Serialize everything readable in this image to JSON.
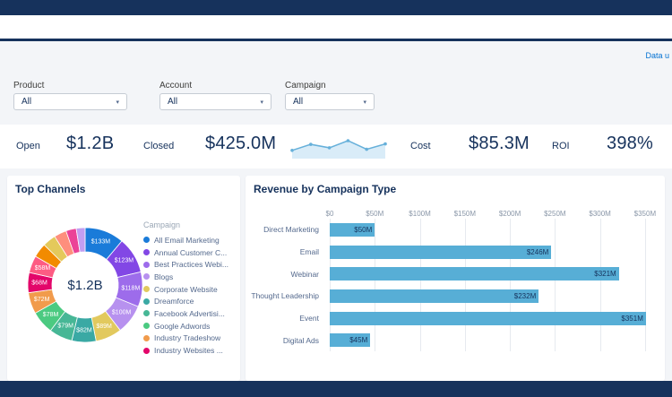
{
  "page": {
    "data_updated_text": "Data u"
  },
  "filters": [
    {
      "label": "Product",
      "value": "All"
    },
    {
      "label": "Account",
      "value": "All"
    },
    {
      "label": "Campaign",
      "value": "All"
    }
  ],
  "kpis": [
    {
      "label": "Open",
      "value": "$1.2B"
    },
    {
      "label": "Closed",
      "value": "$425.0M"
    },
    {
      "label": "Cost",
      "value": "$85.3M"
    },
    {
      "label": "ROI",
      "value": "398%"
    }
  ],
  "chart_data": [
    {
      "type": "donut",
      "title": "Top Channels",
      "center_label": "$1.2B",
      "legend_title": "Campaign",
      "legend_position": "right",
      "segments": [
        {
          "name": "All Email Marketing",
          "value": 133,
          "value_label": "$133M",
          "color": "#1a7bd9",
          "in_legend": true
        },
        {
          "name": "Annual Customer C...",
          "value": 123,
          "value_label": "$123M",
          "color": "#8247e5",
          "in_legend": true
        },
        {
          "name": "Best Practices Webi...",
          "value": 118,
          "value_label": "$118M",
          "color": "#9d6ceb",
          "in_legend": true
        },
        {
          "name": "Blogs",
          "value": 100,
          "value_label": "$100M",
          "color": "#b791ef",
          "in_legend": true
        },
        {
          "name": "Corporate Website",
          "value": 89,
          "value_label": "$89M",
          "color": "#e2c95e",
          "in_legend": true
        },
        {
          "name": "Dreamforce",
          "value": 82,
          "value_label": "$82M",
          "color": "#3aa9a4",
          "in_legend": true
        },
        {
          "name": "Facebook Advertisi...",
          "value": 79,
          "value_label": "$79M",
          "color": "#47b796",
          "in_legend": true
        },
        {
          "name": "Google Adwords",
          "value": 78,
          "value_label": "$78M",
          "color": "#4bca81",
          "in_legend": true
        },
        {
          "name": "Industry Tradeshow",
          "value": 72,
          "value_label": "$72M",
          "color": "#f19b4c",
          "in_legend": true
        },
        {
          "name": "Industry Websites ...",
          "value": 68,
          "value_label": "$68M",
          "color": "#e3066a",
          "in_legend": true
        },
        {
          "name": "",
          "value": 58,
          "value_label": "$58M",
          "color": "#fd5c83",
          "in_legend": false
        },
        {
          "name": "",
          "value": 48,
          "value_label": "",
          "color": "#f28b00",
          "in_legend": false
        },
        {
          "name": "",
          "value": 45,
          "value_label": "",
          "color": "#e4c95b",
          "in_legend": false
        },
        {
          "name": "",
          "value": 42,
          "value_label": "",
          "color": "#fe8f7d",
          "in_legend": false
        },
        {
          "name": "",
          "value": 35,
          "value_label": "",
          "color": "#eb4397",
          "in_legend": false
        },
        {
          "name": "",
          "value": 30,
          "value_label": "",
          "color": "#c29ef1",
          "in_legend": false
        }
      ]
    },
    {
      "type": "bar",
      "orientation": "horizontal",
      "title": "Revenue by Campaign Type",
      "categories": [
        "Direct Marketing",
        "Email",
        "Webinar",
        "Thought Leadership",
        "Event",
        "Digital Ads"
      ],
      "values": [
        50,
        246,
        321,
        232,
        351,
        45
      ],
      "value_labels": [
        "$50M",
        "$246M",
        "$321M",
        "$232M",
        "$351M",
        "$45M"
      ],
      "ticks": [
        {
          "label": "$0",
          "value": 0
        },
        {
          "label": "$50M",
          "value": 50
        },
        {
          "label": "$100M",
          "value": 100
        },
        {
          "label": "$150M",
          "value": 150
        },
        {
          "label": "$200M",
          "value": 200
        },
        {
          "label": "$250M",
          "value": 250
        },
        {
          "label": "$300M",
          "value": 300
        },
        {
          "label": "$350M",
          "value": 350
        }
      ],
      "axis_max": 372,
      "bar_color": "#57aed6",
      "grid": true
    },
    {
      "type": "line",
      "title": "",
      "values": [
        30,
        58,
        42,
        75,
        35,
        60
      ],
      "line_color": "#66b0da",
      "fill_color": "#d9ecf8"
    }
  ]
}
